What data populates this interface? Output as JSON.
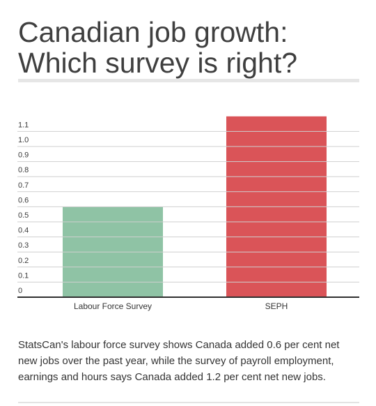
{
  "header": {
    "title_line1": "Canadian job growth:",
    "title_line2": "Which survey is right?"
  },
  "chart_data": {
    "type": "bar",
    "categories": [
      "Labour Force Survey",
      "SEPH"
    ],
    "values": [
      0.6,
      1.2
    ],
    "colors": [
      "#8fc3a5",
      "#da5458"
    ],
    "ytick_labels": [
      "0",
      "0.1",
      "0.2",
      "0.3",
      "0.4",
      "0.5",
      "0.6",
      "0.7",
      "0.8",
      "0.9",
      "1.0",
      "1.1"
    ],
    "ylim": [
      0,
      1.2
    ],
    "grid": true,
    "legend": "none",
    "title": "",
    "xlabel": "",
    "ylabel": ""
  },
  "caption": "StatsCan's labour force survey shows Canada added 0.6 per cent net new jobs over the past year, while the survey of payroll employment, earnings and hours says Canada added 1.2 per cent net new jobs."
}
